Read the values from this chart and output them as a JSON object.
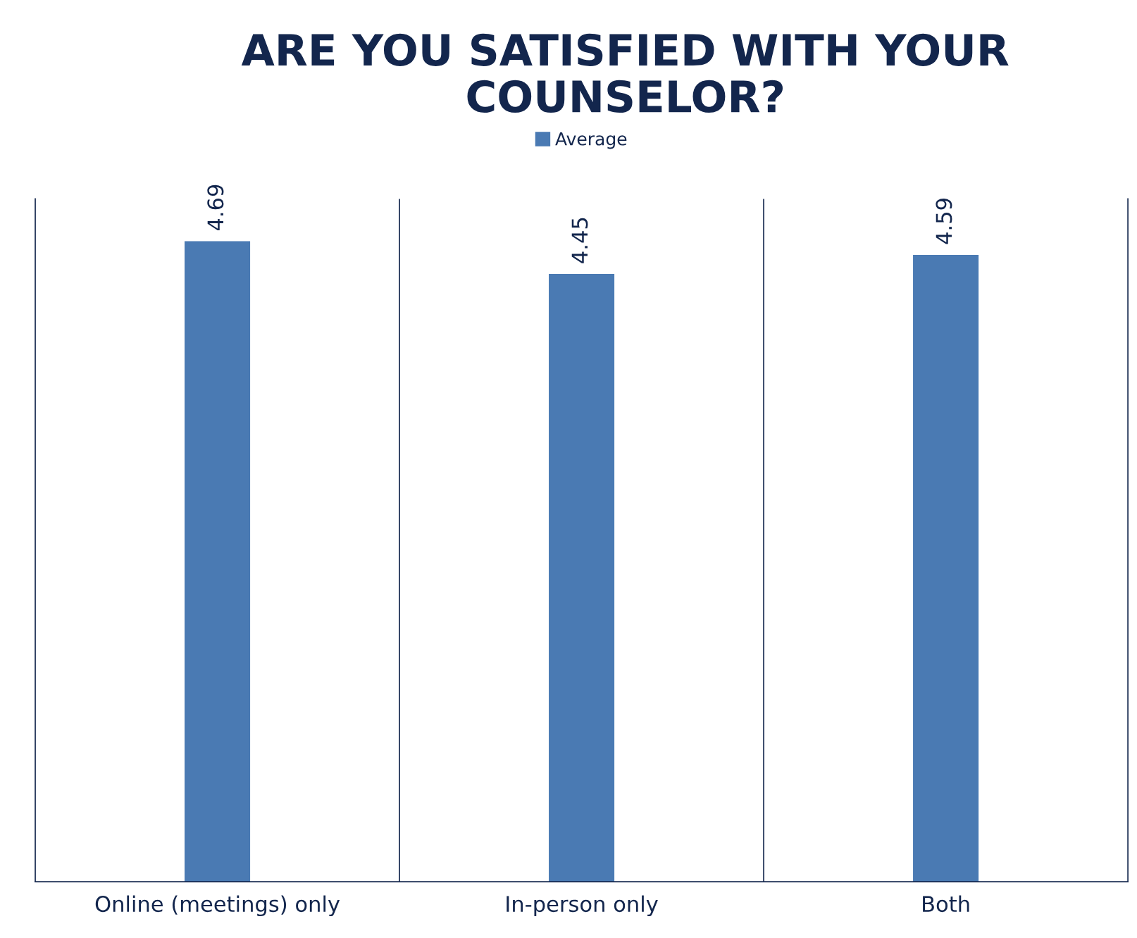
{
  "chart_data": {
    "type": "bar",
    "title": "ARE YOU SATISFIED WITH YOUR\nCOUNSELOR?",
    "categories": [
      "Online (meetings) only",
      "In-person only",
      "Both"
    ],
    "series": [
      {
        "name": "Average",
        "color": "#4a7ab3",
        "values": [
          4.69,
          4.45,
          4.59
        ]
      }
    ],
    "ylim": [
      0,
      5
    ],
    "tick_labels": "x",
    "data_labels": true,
    "grid": "x",
    "legend": "top"
  }
}
